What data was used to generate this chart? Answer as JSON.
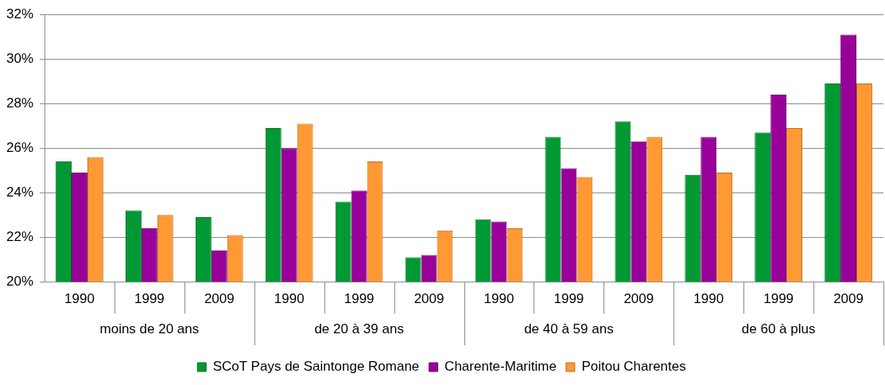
{
  "chart_data": {
    "type": "bar",
    "categories": [
      "1990",
      "1999",
      "2009",
      "1990",
      "1999",
      "2009",
      "1990",
      "1999",
      "2009",
      "1990",
      "1999",
      "2009"
    ],
    "annotations": [
      "moins de 20 ans",
      "de 20 à 39 ans",
      "de 40 à 59 ans",
      "de 60 à plus"
    ],
    "series": [
      {
        "name": "SCoT Pays de Saintonge Romane",
        "color": "#009933",
        "values": [
          25.4,
          23.2,
          22.9,
          26.9,
          23.6,
          21.1,
          22.8,
          26.5,
          27.2,
          24.8,
          26.7,
          28.9
        ]
      },
      {
        "name": "Charente-Maritime",
        "color": "#990099",
        "values": [
          24.9,
          22.4,
          21.4,
          26.0,
          24.1,
          21.2,
          22.7,
          25.1,
          26.3,
          26.5,
          28.4,
          31.1
        ]
      },
      {
        "name": "Poitou Charentes",
        "color": "#ff9933",
        "values": [
          25.6,
          23.0,
          22.1,
          27.1,
          25.4,
          22.3,
          22.4,
          24.7,
          26.5,
          24.9,
          26.9,
          28.9
        ]
      }
    ],
    "ylim": [
      20,
      32
    ],
    "yticks": [
      {
        "value": 20,
        "label": "20%"
      },
      {
        "value": 22,
        "label": "22%"
      },
      {
        "value": 24,
        "label": "24%"
      },
      {
        "value": 26,
        "label": "26%"
      },
      {
        "value": 28,
        "label": "28%"
      },
      {
        "value": 30,
        "label": "30%"
      },
      {
        "value": 32,
        "label": "32%"
      }
    ],
    "grid": "y",
    "legend": "bottom"
  }
}
